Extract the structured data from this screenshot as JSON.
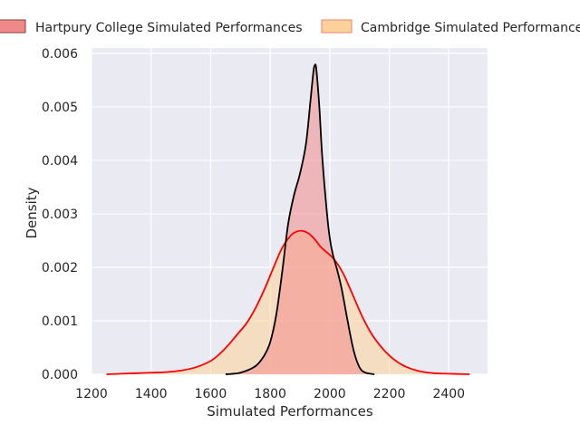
{
  "chart_data": {
    "type": "area",
    "title": "",
    "xlabel": "Simulated Performances",
    "ylabel": "Density",
    "xlim": [
      1200,
      2530
    ],
    "ylim": [
      0,
      0.0061
    ],
    "xticks": [
      1200,
      1400,
      1600,
      1800,
      2000,
      2200,
      2400
    ],
    "xtick_labels": [
      "1200",
      "1400",
      "1600",
      "1800",
      "2000",
      "2200",
      "2400"
    ],
    "yticks": [
      0,
      0.001,
      0.002,
      0.003,
      0.004,
      0.005,
      0.006
    ],
    "ytick_labels": [
      "0.000",
      "0.001",
      "0.002",
      "0.003",
      "0.004",
      "0.005",
      "0.006"
    ],
    "grid": true,
    "legend_position": "top-center",
    "series": [
      {
        "name": "Cambridge Simulated Performances",
        "fill_color": "#fdd29a",
        "fill_opacity": 0.55,
        "line_color": "#ff0000",
        "legend_fill": "#fdd29a",
        "legend_edge": "#f08060",
        "x": [
          1250,
          1300,
          1350,
          1400,
          1450,
          1500,
          1550,
          1600,
          1630,
          1660,
          1690,
          1720,
          1750,
          1780,
          1810,
          1840,
          1870,
          1890,
          1910,
          1930,
          1950,
          1970,
          1990,
          2010,
          2030,
          2050,
          2080,
          2110,
          2140,
          2170,
          2200,
          2230,
          2260,
          2300,
          2350,
          2400,
          2470
        ],
        "values": [
          0.0,
          1e-05,
          2e-05,
          3e-05,
          4e-05,
          7e-05,
          0.00013,
          0.00025,
          0.00038,
          0.00055,
          0.00075,
          0.00095,
          0.00123,
          0.00158,
          0.00198,
          0.00236,
          0.0026,
          0.00267,
          0.00268,
          0.00263,
          0.00252,
          0.00238,
          0.00228,
          0.00218,
          0.00203,
          0.00183,
          0.00145,
          0.00107,
          0.00076,
          0.00053,
          0.00035,
          0.00022,
          0.00013,
          6e-05,
          2e-05,
          1e-05,
          0.0
        ]
      },
      {
        "name": "Hartpury College Simulated Performances",
        "fill_color": "#f08a8a",
        "fill_opacity": 0.55,
        "line_color": "#000000",
        "legend_fill": "#f08a8a",
        "legend_edge": "#8b3a3a",
        "x": [
          1650,
          1700,
          1750,
          1780,
          1800,
          1820,
          1840,
          1860,
          1880,
          1900,
          1920,
          1935,
          1945,
          1950,
          1955,
          1965,
          1975,
          1990,
          2000,
          2010,
          2025,
          2040,
          2060,
          2080,
          2100,
          2120,
          2150
        ],
        "values": [
          0.0,
          3e-05,
          0.00015,
          0.00035,
          0.0006,
          0.0011,
          0.0019,
          0.0028,
          0.00335,
          0.00375,
          0.0043,
          0.0051,
          0.00565,
          0.00578,
          0.0057,
          0.005,
          0.00405,
          0.00305,
          0.00255,
          0.00225,
          0.00195,
          0.0016,
          0.001,
          0.00045,
          0.00013,
          3e-05,
          0.0
        ]
      }
    ]
  }
}
